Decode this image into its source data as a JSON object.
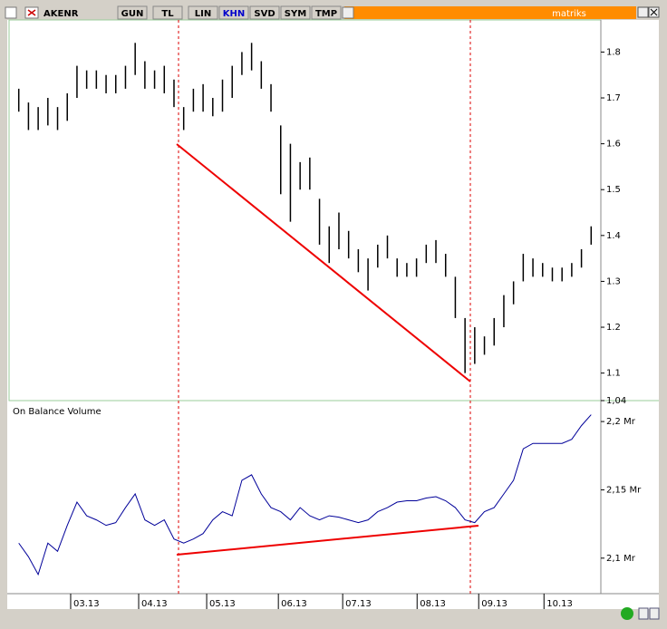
{
  "toolbar": {
    "symbol": "AKENR",
    "buttons": [
      "GUN",
      "TL",
      "LIN",
      "KHN",
      "SVD",
      "SYM",
      "TMP"
    ],
    "brand": "matriks"
  },
  "chart_data": [
    {
      "type": "ohlc",
      "color": "#000000",
      "x": [
        1,
        2,
        3,
        4,
        5,
        6,
        7,
        8,
        9,
        10,
        11,
        12,
        13,
        14,
        15,
        16,
        17,
        18,
        19,
        20,
        21,
        22,
        23,
        24,
        25,
        26,
        27,
        28,
        29,
        30,
        31,
        32,
        33,
        34,
        35,
        36,
        37,
        38,
        39,
        40,
        41,
        42,
        43,
        44,
        45,
        46,
        47,
        48,
        49,
        50,
        51,
        52,
        53,
        54,
        55,
        56,
        57,
        58,
        59,
        60
      ],
      "high": [
        1.72,
        1.69,
        1.68,
        1.7,
        1.68,
        1.71,
        1.77,
        1.76,
        1.76,
        1.75,
        1.75,
        1.77,
        1.82,
        1.78,
        1.76,
        1.77,
        1.74,
        1.68,
        1.72,
        1.73,
        1.7,
        1.74,
        1.77,
        1.8,
        1.82,
        1.78,
        1.73,
        1.64,
        1.6,
        1.56,
        1.57,
        1.48,
        1.42,
        1.45,
        1.41,
        1.37,
        1.35,
        1.38,
        1.4,
        1.35,
        1.34,
        1.35,
        1.38,
        1.39,
        1.36,
        1.31,
        1.22,
        1.2,
        1.18,
        1.22,
        1.27,
        1.3,
        1.36,
        1.35,
        1.34,
        1.33,
        1.33,
        1.34,
        1.37,
        1.42
      ],
      "low": [
        1.67,
        1.63,
        1.63,
        1.64,
        1.63,
        1.65,
        1.7,
        1.72,
        1.72,
        1.71,
        1.71,
        1.72,
        1.75,
        1.72,
        1.72,
        1.71,
        1.68,
        1.63,
        1.67,
        1.67,
        1.66,
        1.67,
        1.7,
        1.75,
        1.76,
        1.72,
        1.67,
        1.49,
        1.43,
        1.5,
        1.5,
        1.38,
        1.34,
        1.37,
        1.35,
        1.32,
        1.28,
        1.33,
        1.35,
        1.31,
        1.31,
        1.31,
        1.34,
        1.34,
        1.31,
        1.22,
        1.1,
        1.12,
        1.14,
        1.16,
        1.2,
        1.25,
        1.3,
        1.31,
        1.31,
        1.3,
        1.3,
        1.31,
        1.33,
        1.38
      ],
      "xlim": [
        0,
        61
      ],
      "ylim": [
        1.04,
        1.87
      ],
      "yticks": [
        {
          "value": 1.04,
          "label": "1,04"
        },
        1.1,
        1.2,
        1.3,
        1.4,
        1.5,
        1.6,
        1.7,
        1.8
      ]
    },
    {
      "type": "line",
      "title": "On Balance Volume",
      "color": "#000099",
      "x": [
        1,
        2,
        3,
        4,
        5,
        6,
        7,
        8,
        9,
        10,
        11,
        12,
        13,
        14,
        15,
        16,
        17,
        18,
        19,
        20,
        21,
        22,
        23,
        24,
        25,
        26,
        27,
        28,
        29,
        30,
        31,
        32,
        33,
        34,
        35,
        36,
        37,
        38,
        39,
        40,
        41,
        42,
        43,
        44,
        45,
        46,
        47,
        48,
        49,
        50,
        51,
        52,
        53,
        54,
        55,
        56,
        57,
        58,
        59,
        60
      ],
      "values": [
        2.111,
        2.101,
        2.088,
        2.111,
        2.105,
        2.124,
        2.141,
        2.131,
        2.128,
        2.124,
        2.126,
        2.137,
        2.147,
        2.128,
        2.124,
        2.128,
        2.114,
        2.111,
        2.114,
        2.118,
        2.128,
        2.134,
        2.131,
        2.157,
        2.161,
        2.147,
        2.137,
        2.134,
        2.128,
        2.137,
        2.131,
        2.128,
        2.131,
        2.13,
        2.128,
        2.126,
        2.128,
        2.134,
        2.137,
        2.141,
        2.142,
        2.142,
        2.144,
        2.145,
        2.142,
        2.137,
        2.128,
        2.126,
        2.134,
        2.137,
        2.147,
        2.157,
        2.18,
        2.184,
        2.184,
        2.184,
        2.184,
        2.187,
        2.197,
        2.205
      ],
      "xlim": [
        0,
        61
      ],
      "ylim": [
        2.074,
        2.214
      ],
      "yticks": [
        {
          "value": 2.1,
          "label": "2,1 Mr"
        },
        {
          "value": 2.15,
          "label": "2,15 Mr"
        },
        {
          "value": 2.2,
          "label": "2,2 Mr"
        }
      ],
      "xticks": [
        {
          "value": 6.35,
          "label": "03.13"
        },
        {
          "value": 13.36,
          "label": "04.13"
        },
        {
          "value": 20.37,
          "label": "05.13"
        },
        {
          "value": 27.76,
          "label": "06.13"
        },
        {
          "value": 34.39,
          "label": "07.13"
        },
        {
          "value": 42.06,
          "label": "08.13"
        },
        {
          "value": 48.41,
          "label": "09.13"
        },
        {
          "value": 55.14,
          "label": "10.13"
        }
      ]
    }
  ]
}
